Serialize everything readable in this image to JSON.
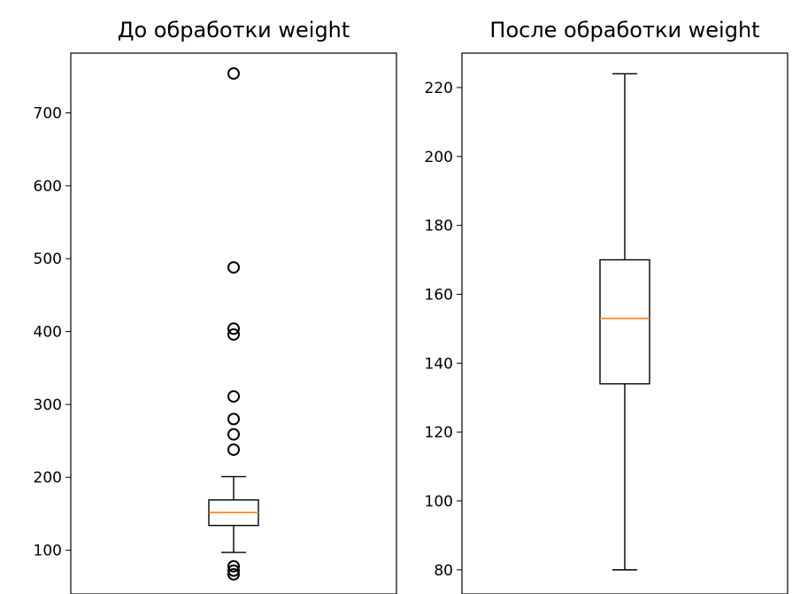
{
  "chart_data": [
    {
      "type": "box",
      "title": "До обработки weight",
      "ylim": [
        40,
        782
      ],
      "yticks": [
        100,
        200,
        300,
        400,
        500,
        600,
        700
      ],
      "box": {
        "whislo": 97,
        "q1": 134,
        "med": 152,
        "q3": 169,
        "whishi": 201
      },
      "fliers": [
        754,
        488,
        404,
        396,
        311,
        280,
        259,
        238,
        78,
        72,
        67
      ],
      "box_color": "#000000",
      "median_color": "#ff7f0e",
      "flier_color": "#000000"
    },
    {
      "type": "box",
      "title": "После обработки weight",
      "ylim": [
        73,
        230
      ],
      "yticks": [
        80,
        100,
        120,
        140,
        160,
        180,
        200,
        220
      ],
      "box": {
        "whislo": 80,
        "q1": 134,
        "med": 153,
        "q3": 170,
        "whishi": 224
      },
      "fliers": [],
      "box_color": "#000000",
      "median_color": "#ff7f0e",
      "flier_color": "#000000"
    }
  ]
}
